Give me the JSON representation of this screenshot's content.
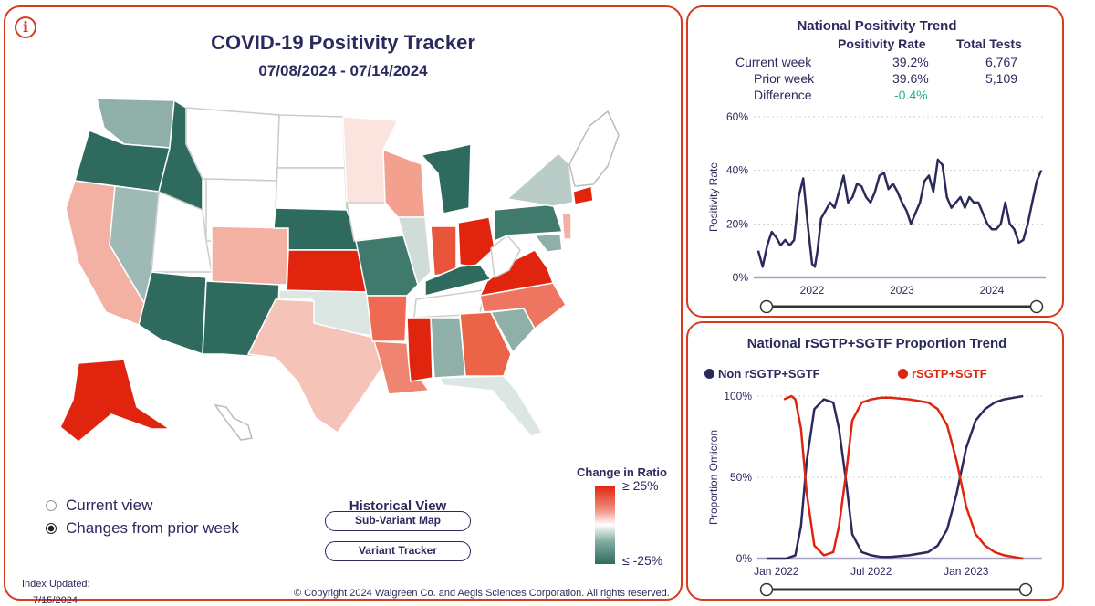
{
  "left": {
    "title": "COVID-19 Positivity Tracker",
    "date_range": "07/08/2024 - 07/14/2024",
    "info_icon": "i",
    "radios": [
      {
        "label": "Current view",
        "selected": false
      },
      {
        "label": "Changes from prior week",
        "selected": true
      }
    ],
    "historical_title": "Historical View",
    "buttons": [
      "Sub-Variant Map",
      "Variant Tracker"
    ],
    "legend": {
      "title": "Change in Ratio",
      "top": "≥ 25%",
      "bottom": "≤ -25%"
    },
    "updated_label": "Index Updated:",
    "updated_date": "7/15/2024",
    "copyright": "© Copyright 2024 Walgreen Co. and Aegis Sciences Corporation. All rights reserved."
  },
  "trend": {
    "title": "National Positivity Trend",
    "headers": [
      "Positivity Rate",
      "Total Tests"
    ],
    "rows": [
      {
        "label": "Current week",
        "rate": "39.2%",
        "tests": "6,767"
      },
      {
        "label": "Prior week",
        "rate": "39.6%",
        "tests": "5,109"
      },
      {
        "label": "Difference",
        "rate": "-0.4%",
        "tests": ""
      }
    ],
    "difference_color": "#2ab08f"
  },
  "proportion": {
    "title": "National rSGTP+SGTF Proportion Trend",
    "legend": [
      {
        "name": "Non rSGTP+SGTF",
        "color": "#2b2a5c"
      },
      {
        "name": "rSGTP+SGTF",
        "color": "#e0240d"
      }
    ]
  },
  "chart_data": [
    {
      "type": "line",
      "title": "National Positivity Trend",
      "ylabel": "Positivity Rate",
      "xlabel": "",
      "ylim": [
        0,
        60
      ],
      "yticks": [
        "0%",
        "20%",
        "40%",
        "60%"
      ],
      "xticks": [
        {
          "label": "2022",
          "x": 2022.0
        },
        {
          "label": "2023",
          "x": 2023.0
        },
        {
          "label": "2024",
          "x": 2024.0
        }
      ],
      "xlim": [
        2021.35,
        2024.6
      ],
      "series": [
        {
          "name": "Positivity Rate",
          "color": "#2b2a5c",
          "x": [
            2021.4,
            2021.45,
            2021.5,
            2021.55,
            2021.6,
            2021.65,
            2021.7,
            2021.75,
            2021.8,
            2021.85,
            2021.9,
            2021.95,
            2022.0,
            2022.03,
            2022.06,
            2022.1,
            2022.15,
            2022.2,
            2022.25,
            2022.3,
            2022.35,
            2022.4,
            2022.45,
            2022.5,
            2022.55,
            2022.6,
            2022.65,
            2022.7,
            2022.75,
            2022.8,
            2022.85,
            2022.9,
            2022.95,
            2023.0,
            2023.05,
            2023.1,
            2023.15,
            2023.2,
            2023.25,
            2023.3,
            2023.35,
            2023.4,
            2023.45,
            2023.5,
            2023.55,
            2023.6,
            2023.65,
            2023.7,
            2023.75,
            2023.8,
            2023.85,
            2023.9,
            2023.95,
            2024.0,
            2024.05,
            2024.1,
            2024.15,
            2024.2,
            2024.25,
            2024.3,
            2024.35,
            2024.4,
            2024.45,
            2024.5,
            2024.55
          ],
          "y": [
            10,
            4,
            12,
            17,
            15,
            12,
            14,
            12,
            14,
            30,
            37,
            20,
            5,
            4,
            10,
            22,
            25,
            28,
            26,
            32,
            38,
            28,
            30,
            35,
            34,
            30,
            28,
            32,
            38,
            39,
            33,
            35,
            32,
            28,
            25,
            20,
            24,
            28,
            36,
            38,
            32,
            44,
            42,
            30,
            26,
            28,
            30,
            26,
            30,
            28,
            28,
            24,
            20,
            18,
            18,
            20,
            28,
            20,
            18,
            13,
            14,
            20,
            28,
            36,
            40
          ]
        }
      ]
    },
    {
      "type": "line",
      "title": "National rSGTP+SGTF Proportion Trend",
      "ylabel": "Proportion Omicron",
      "ylim": [
        0,
        100
      ],
      "yticks": [
        "0%",
        "50%",
        "100%"
      ],
      "xticks": [
        {
          "label": "Jan 2022",
          "x": 2022.0
        },
        {
          "label": "Jul 2022",
          "x": 2022.5
        },
        {
          "label": "Jan 2023",
          "x": 2023.0
        }
      ],
      "xlim": [
        2021.9,
        2023.4
      ],
      "series": [
        {
          "name": "Non rSGTP+SGTF",
          "color": "#2b2a5c",
          "x": [
            2021.95,
            2022.0,
            2022.05,
            2022.1,
            2022.13,
            2022.16,
            2022.2,
            2022.25,
            2022.3,
            2022.33,
            2022.37,
            2022.4,
            2022.45,
            2022.5,
            2022.55,
            2022.6,
            2022.7,
            2022.8,
            2022.85,
            2022.9,
            2022.95,
            2023.0,
            2023.05,
            2023.1,
            2023.15,
            2023.2,
            2023.25,
            2023.3
          ],
          "y": [
            0,
            0,
            0,
            2,
            20,
            60,
            92,
            98,
            96,
            80,
            45,
            15,
            4,
            2,
            1,
            1,
            2,
            4,
            8,
            18,
            40,
            68,
            85,
            92,
            96,
            98,
            99,
            100
          ]
        },
        {
          "name": "rSGTP+SGTF",
          "color": "#e0240d",
          "x": [
            2022.04,
            2022.08,
            2022.1,
            2022.13,
            2022.16,
            2022.2,
            2022.25,
            2022.3,
            2022.33,
            2022.37,
            2022.4,
            2022.45,
            2022.5,
            2022.55,
            2022.6,
            2022.7,
            2022.8,
            2022.85,
            2022.9,
            2022.95,
            2023.0,
            2023.05,
            2023.1,
            2023.15,
            2023.2,
            2023.25,
            2023.3
          ],
          "y": [
            98,
            100,
            98,
            80,
            40,
            8,
            2,
            4,
            20,
            55,
            85,
            96,
            98,
            99,
            99,
            98,
            96,
            92,
            82,
            60,
            32,
            15,
            8,
            4,
            2,
            1,
            0
          ]
        }
      ]
    }
  ]
}
